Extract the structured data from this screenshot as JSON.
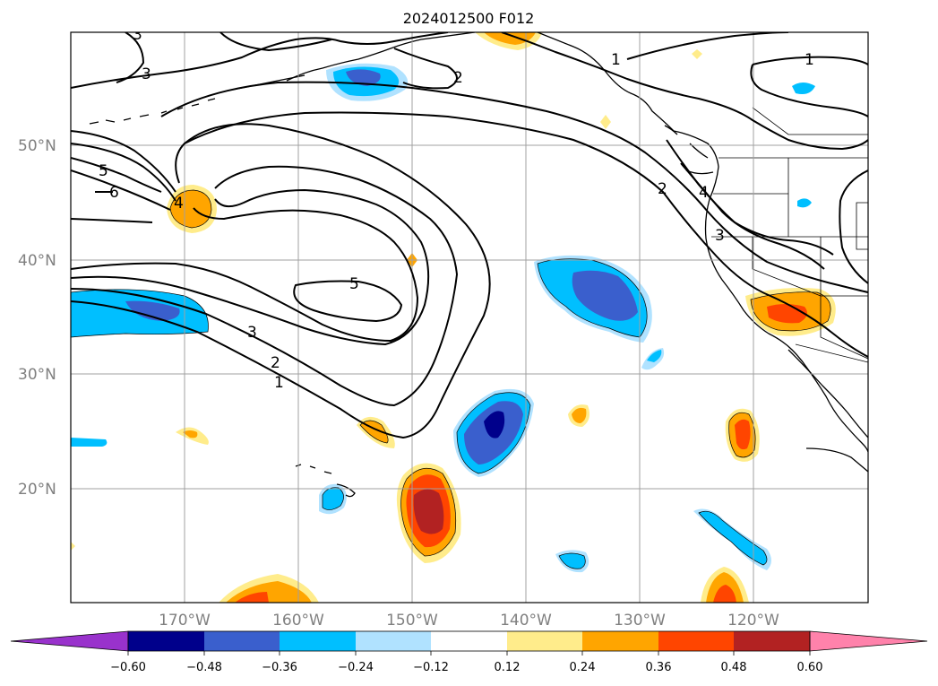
{
  "title": "2024012500 F012",
  "map": {
    "lat_labels": [
      "50°N",
      "40°N",
      "30°N",
      "20°N"
    ],
    "lon_labels": [
      "170°W",
      "160°W",
      "150°W",
      "140°W",
      "130°W",
      "120°W"
    ],
    "grid": true
  },
  "colorbar": {
    "ticks": [
      "−0.60",
      "−0.48",
      "−0.36",
      "−0.24",
      "−0.12",
      "0.12",
      "0.24",
      "0.36",
      "0.48",
      "0.60"
    ],
    "colors": [
      "#9932cc",
      "#00008b",
      "#3a5fcd",
      "#00bfff",
      "#b0e2ff",
      "#ffffff",
      "#ffec8b",
      "#ffa500",
      "#ff4500",
      "#b22222",
      "#ff82ab"
    ],
    "extend": "both"
  },
  "contour_labels": [
    "1",
    "1",
    "1",
    "2",
    "2",
    "2",
    "3",
    "3",
    "3",
    "4",
    "4",
    "5",
    "5",
    "6",
    "3"
  ]
}
